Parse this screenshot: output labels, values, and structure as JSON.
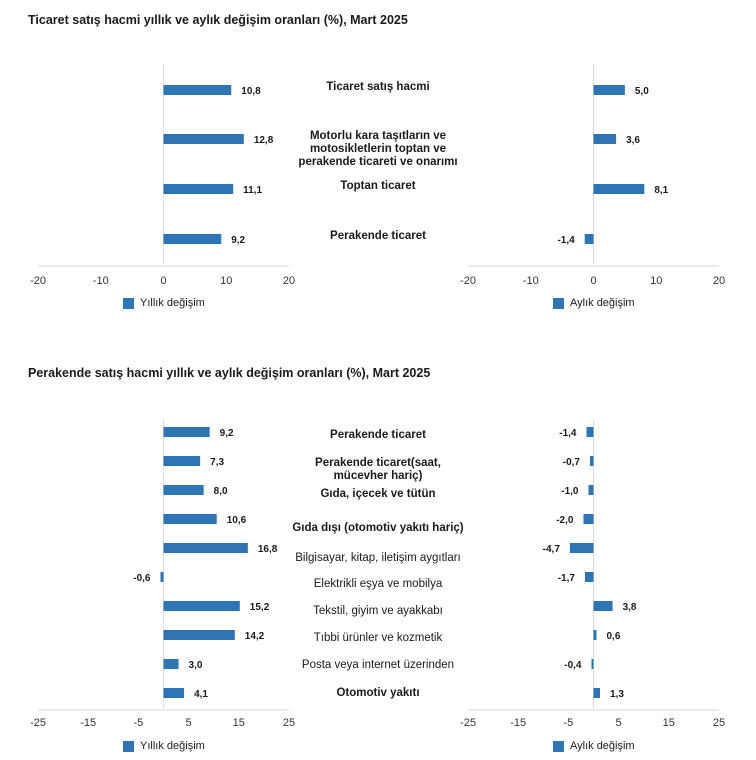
{
  "chart_data": [
    {
      "type": "bar",
      "title": "Ticaret satış hacmi yıllık ve aylık değişim oranları (%), Mart 2025",
      "categories": [
        "Ticaret satış hacmi",
        "Motorlu kara taşıtların ve motosikletlerin toptan ve perakende ticareti ve onarımı",
        "Toptan ticaret",
        "Perakende ticaret"
      ],
      "bold": [
        true,
        true,
        true,
        true
      ],
      "series": [
        {
          "name": "Yıllık değişim",
          "values": [
            10.8,
            12.8,
            11.1,
            9.2
          ],
          "labels": [
            "10,8",
            "12,8",
            "11,1",
            "9,2"
          ]
        },
        {
          "name": "Aylık değişim",
          "values": [
            5.0,
            3.6,
            8.1,
            -1.4
          ],
          "labels": [
            "5,0",
            "3,6",
            "8,1",
            "-1,4"
          ]
        }
      ],
      "xlim": [
        -20,
        20
      ],
      "ticks": [
        -20,
        -10,
        0,
        10,
        20
      ],
      "tick_labels": [
        "-20",
        "-10",
        "0",
        "10",
        "20"
      ],
      "color": "#2e75b6"
    },
    {
      "type": "bar",
      "title": "Perakende satış hacmi yıllık ve aylık değişim oranları (%), Mart 2025",
      "categories": [
        "Perakende ticaret",
        "Perakende ticaret(saat, mücevher hariç)",
        "Gıda, içecek ve tütün",
        "Gıda dışı (otomotiv yakıtı hariç)",
        "Bilgisayar, kitap, iletişim aygıtları",
        "Elektrikli eşya ve mobilya",
        "Tekstil, giyim ve ayakkabı",
        "Tıbbi ürünler ve kozmetik",
        "Posta veya internet üzerinden",
        "Otomotiv yakıtı"
      ],
      "bold": [
        true,
        true,
        true,
        true,
        false,
        false,
        false,
        false,
        false,
        true
      ],
      "series": [
        {
          "name": "Yıllık değişim",
          "values": [
            9.2,
            7.3,
            8.0,
            10.6,
            16.8,
            -0.6,
            15.2,
            14.2,
            3.0,
            4.1
          ],
          "labels": [
            "9,2",
            "7,3",
            "8,0",
            "10,6",
            "16,8",
            "-0,6",
            "15,2",
            "14,2",
            "3,0",
            "4,1"
          ]
        },
        {
          "name": "Aylık değişim",
          "values": [
            -1.4,
            -0.7,
            -1.0,
            -2.0,
            -4.7,
            -1.7,
            3.8,
            0.6,
            -0.4,
            1.3
          ],
          "labels": [
            "-1,4",
            "-0,7",
            "-1,0",
            "-2,0",
            "-4,7",
            "-1,7",
            "3,8",
            "0,6",
            "-0,4",
            "1,3"
          ]
        }
      ],
      "xlim": [
        -25,
        25
      ],
      "ticks": [
        -25,
        -15,
        -5,
        5,
        15,
        25
      ],
      "tick_labels": [
        "-25",
        "-15",
        "-5",
        "5",
        "15",
        "25"
      ],
      "color": "#2e75b6"
    }
  ]
}
